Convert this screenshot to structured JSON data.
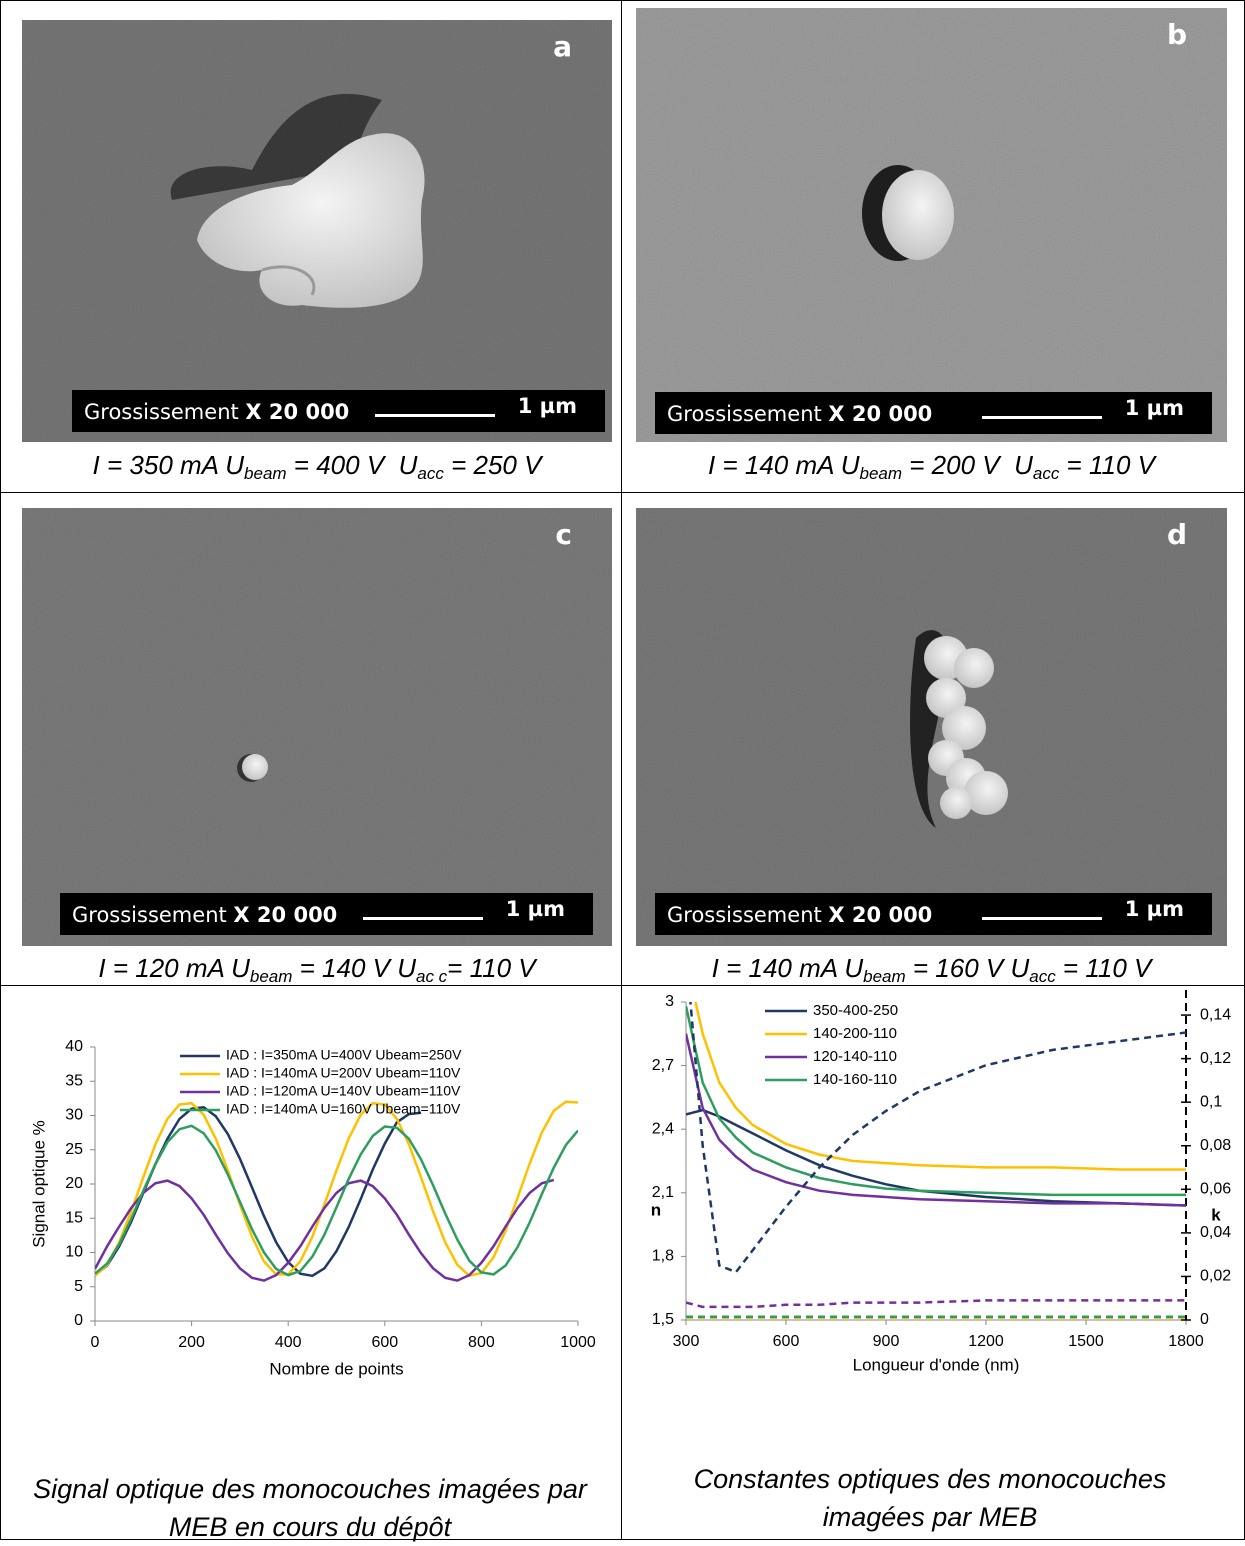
{
  "panels": [
    {
      "label": "a",
      "magnification_label": "Grossissement ",
      "magnification": "X 20 000",
      "scale": "1 µm",
      "caption": [
        "I = 350 mA U",
        "beam",
        " = 400 V  U",
        "acc",
        " = 250 V"
      ]
    },
    {
      "label": "b",
      "magnification_label": "Grossissement ",
      "magnification": "X 20 000",
      "scale": "1 µm",
      "caption": [
        "I = 140 mA U",
        "beam",
        " = 200 V  U",
        "acc",
        " = 110 V"
      ]
    },
    {
      "label": "c",
      "magnification_label": "Grossissement ",
      "magnification": "X 20 000",
      "scale": "1 µm",
      "caption": [
        "I = 120 mA U",
        "beam",
        " = 140 V U",
        "ac c",
        "= 110 V"
      ]
    },
    {
      "label": "d",
      "magnification_label": "Grossissement ",
      "magnification": "X 20 000",
      "scale": "1 µm",
      "caption": [
        "I = 140 mA U",
        "beam",
        " = 160 V U",
        "acc",
        " = 110 V"
      ]
    }
  ],
  "chart_data": [
    {
      "type": "line",
      "caption": "Signal optique des monocouches imagées par MEB en cours du dépôt",
      "xlabel": "Nombre de points",
      "ylabel": "Signal optique %",
      "xlim": [
        0,
        1000
      ],
      "ylim": [
        0,
        40
      ],
      "xticks": [
        0,
        200,
        400,
        600,
        800,
        1000
      ],
      "yticks": [
        0,
        5,
        10,
        15,
        20,
        25,
        30,
        35,
        40
      ],
      "x": [
        0,
        25,
        50,
        75,
        100,
        125,
        150,
        175,
        200,
        225,
        250,
        275,
        300,
        325,
        350,
        375,
        400,
        425,
        450,
        475,
        500,
        525,
        550,
        575,
        600,
        625,
        650,
        675,
        700,
        725,
        750,
        775,
        800,
        825,
        850,
        875,
        900,
        925,
        950,
        975,
        1000
      ],
      "series": [
        {
          "name": "IAD : I=350mA U=400V Ubeam=250V",
          "color": "#1f3864",
          "values": [
            6.7,
            8.1,
            10.9,
            14.5,
            18.7,
            22.9,
            26.6,
            29.5,
            31.0,
            31.2,
            29.9,
            27.3,
            23.7,
            19.5,
            15.3,
            11.5,
            8.6,
            6.9,
            6.6,
            7.7,
            10.2,
            13.7,
            17.8,
            22.1,
            25.9,
            29.0,
            30.2,
            30.4,
            null,
            null,
            null,
            null,
            null,
            null,
            null,
            null,
            null,
            null,
            null,
            null,
            null
          ]
        },
        {
          "name": "IAD : I=140mA U=200V Ubeam=110V",
          "color": "#ffc000",
          "values": [
            6.6,
            8.2,
            11.5,
            16.0,
            21.0,
            25.8,
            29.5,
            31.6,
            31.8,
            30.1,
            26.6,
            22.0,
            17.0,
            12.3,
            8.7,
            6.8,
            6.8,
            8.7,
            12.3,
            17.0,
            22.0,
            26.6,
            30.1,
            31.8,
            31.6,
            29.5,
            25.8,
            21.0,
            16.0,
            11.5,
            8.2,
            6.6,
            7.0,
            9.3,
            13.2,
            18.0,
            23.0,
            27.5,
            30.7,
            32.0,
            31.9
          ]
        },
        {
          "name": "IAD : I=120mA U=140V Ubeam=110V",
          "color": "#7030a0",
          "values": [
            7.6,
            10.9,
            13.8,
            16.5,
            18.7,
            20.1,
            20.5,
            19.7,
            17.9,
            15.5,
            12.6,
            9.9,
            7.7,
            6.3,
            5.9,
            6.7,
            8.5,
            10.9,
            13.8,
            16.5,
            18.7,
            20.1,
            20.5,
            19.7,
            17.9,
            15.5,
            12.6,
            9.9,
            7.7,
            6.3,
            5.9,
            6.7,
            8.5,
            10.9,
            13.8,
            16.5,
            18.7,
            20.1,
            20.6,
            null,
            null
          ]
        },
        {
          "name": "IAD : I=140mA U=160V Ubeam=110V",
          "color": "#2e9e5f",
          "values": [
            6.9,
            8.4,
            11.2,
            14.9,
            19.0,
            22.9,
            26.1,
            28.0,
            28.5,
            27.4,
            24.9,
            21.4,
            17.4,
            13.4,
            10.0,
            7.6,
            6.7,
            7.3,
            9.4,
            12.6,
            16.6,
            20.7,
            24.3,
            27.0,
            28.4,
            28.2,
            26.6,
            23.6,
            19.8,
            15.7,
            11.9,
            8.8,
            7.1,
            6.8,
            8.1,
            10.8,
            14.4,
            18.5,
            22.4,
            25.7,
            27.8
          ]
        }
      ]
    },
    {
      "type": "line",
      "caption": "Constantes optiques des monocouches imagées par MEB",
      "xlabel": "Longueur d'onde (nm)",
      "ylabel": "n",
      "y2label": "k",
      "xlim": [
        300,
        1800
      ],
      "ylim": [
        1.5,
        3
      ],
      "y2lim": [
        0,
        0.146
      ],
      "xticks": [
        300,
        600,
        900,
        1200,
        1500,
        1800
      ],
      "yticks": [
        {
          "value": 1.5,
          "label": "1,5"
        },
        {
          "value": 1.8,
          "label": "1,8"
        },
        {
          "value": 2.1,
          "label": "2,1"
        },
        {
          "value": 2.4,
          "label": "2,4"
        },
        {
          "value": 2.7,
          "label": "2,7"
        },
        3
      ],
      "y2ticks": [
        0,
        {
          "value": 0.02,
          "label": "0,02"
        },
        {
          "value": 0.04,
          "label": "0,04"
        },
        {
          "value": 0.06,
          "label": "0,06"
        },
        {
          "value": 0.08,
          "label": "0,08"
        },
        {
          "value": 0.1,
          "label": "0,1"
        },
        {
          "value": 0.12,
          "label": "0,12"
        },
        {
          "value": 0.14,
          "label": "0,14"
        }
      ],
      "x": [
        300,
        350,
        400,
        450,
        500,
        600,
        700,
        800,
        900,
        1000,
        1200,
        1400,
        1600,
        1800
      ],
      "series": [
        {
          "name": "350-400-250",
          "color": "#1f3864",
          "values": [
            2.47,
            2.49,
            2.46,
            2.42,
            2.38,
            2.3,
            2.23,
            2.18,
            2.14,
            2.11,
            2.08,
            2.06,
            2.05,
            2.04
          ]
        },
        {
          "name": "140-200-110",
          "color": "#ffc000",
          "values": [
            3.2,
            2.85,
            2.62,
            2.5,
            2.42,
            2.33,
            2.28,
            2.25,
            2.24,
            2.23,
            2.22,
            2.22,
            2.21,
            2.21
          ]
        },
        {
          "name": "120-140-110",
          "color": "#7030a0",
          "values": [
            2.85,
            2.5,
            2.35,
            2.27,
            2.21,
            2.15,
            2.11,
            2.09,
            2.08,
            2.07,
            2.06,
            2.05,
            2.05,
            2.04
          ]
        },
        {
          "name": "140-160-110",
          "color": "#2e9e5f",
          "values": [
            2.98,
            2.62,
            2.45,
            2.36,
            2.29,
            2.22,
            2.17,
            2.14,
            2.12,
            2.11,
            2.1,
            2.09,
            2.09,
            2.09
          ]
        },
        {
          "color": "#1f3864",
          "axis": "y2",
          "dashed": true,
          "values": [
            0.17,
            0.08,
            0.025,
            0.022,
            0.032,
            0.052,
            0.07,
            0.085,
            0.096,
            0.105,
            0.117,
            0.124,
            0.128,
            0.132
          ]
        },
        {
          "color": "#ffc000",
          "axis": "y2",
          "dashed": true,
          "values": [
            0.001,
            0.001,
            0.001,
            0.001,
            0.001,
            0.001,
            0.001,
            0.001,
            0.001,
            0.001,
            0.001,
            0.001,
            0.001,
            0.001
          ]
        },
        {
          "color": "#7030a0",
          "axis": "y2",
          "dashed": true,
          "values": [
            0.008,
            0.006,
            0.006,
            0.006,
            0.006,
            0.007,
            0.007,
            0.008,
            0.008,
            0.008,
            0.009,
            0.009,
            0.009,
            0.009
          ]
        },
        {
          "color": "#2e9e5f",
          "axis": "y2",
          "dashed": true,
          "values": [
            0.0015,
            0.0015,
            0.0015,
            0.0015,
            0.0015,
            0.0015,
            0.0015,
            0.0015,
            0.0015,
            0.0015,
            0.0015,
            0.0015,
            0.0015,
            0.0015
          ]
        }
      ]
    }
  ]
}
